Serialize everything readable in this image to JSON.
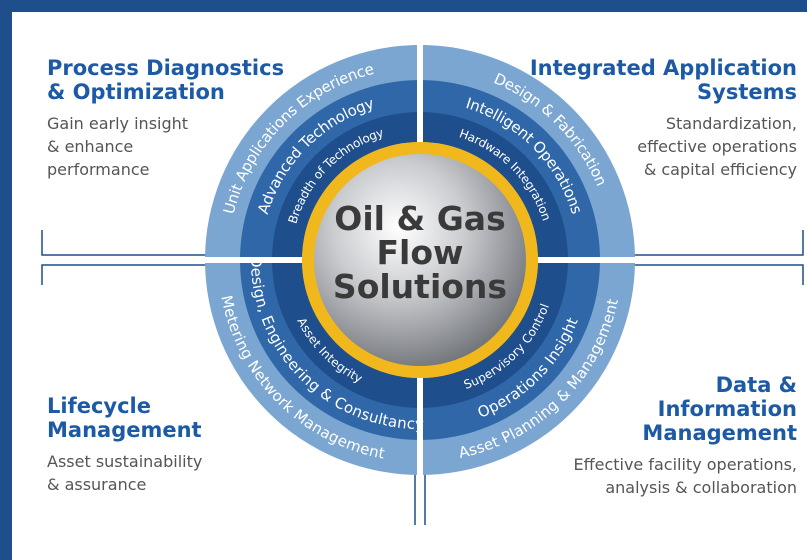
{
  "center": {
    "lines": [
      "Oil & Gas",
      "Flow",
      "Solutions"
    ]
  },
  "quadrants": [
    {
      "title": [
        "Process Diagnostics",
        "& Optimization"
      ],
      "description": [
        "Gain early insight",
        "& enhance",
        "performance"
      ],
      "rings": [
        "Unit Applications Experience",
        "Advanced Technology",
        "Breadth of Technology"
      ]
    },
    {
      "title": [
        "Integrated Application",
        "Systems"
      ],
      "description": [
        "Standardization,",
        "effective operations",
        "& capital efficiency"
      ],
      "rings": [
        "Design & Fabrication",
        "Intelligent Operations",
        "Hardware Integration"
      ]
    },
    {
      "title": [
        "Lifecycle",
        "Management"
      ],
      "description": [
        "Asset sustainability",
        "& assurance"
      ],
      "rings": [
        "Metering Network Management",
        "Design, Engineering & Consultancy",
        "Asset Integrity"
      ]
    },
    {
      "title": [
        "Data &",
        "Information",
        "Management"
      ],
      "description": [
        "Effective facility operations,",
        "analysis & collaboration"
      ],
      "rings": [
        "Asset Planning & Management",
        "Operations Insight",
        "Supervisory Control"
      ]
    }
  ]
}
